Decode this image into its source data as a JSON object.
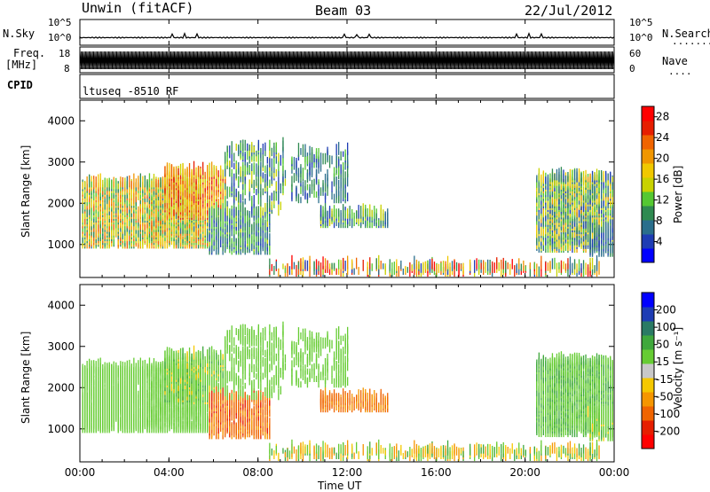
{
  "header": {
    "station": "Unwin (fitACF)",
    "beam": "Beam 03",
    "date": "22/Jul/2012"
  },
  "strip_labels": {
    "nsky": "N.Sky",
    "nsearch": "N.Search",
    "nsearch_dots": ".......",
    "freq": "Freq.",
    "freq_unit": "[MHz]",
    "nave": "Nave",
    "nave_dots": "....",
    "cpid": "CPID",
    "cpid_value": "ltuseq -8510 RF"
  },
  "strip_ticks": {
    "noise_left": [
      "10^5",
      "10^0"
    ],
    "noise_right": [
      "10^5",
      "10^0"
    ],
    "freq_left": [
      "18",
      "8"
    ],
    "nave_right": [
      "60",
      "0"
    ]
  },
  "colors": {
    "power_scale": [
      "#0000ff",
      "#1e3cb4",
      "#2a6e8c",
      "#2f8a50",
      "#55c832",
      "#c8d200",
      "#f0c800",
      "#f09600",
      "#f06400",
      "#e61e00",
      "#ff0000"
    ],
    "velocity_scale": [
      "#0000ff",
      "#1e3cb4",
      "#2a7a64",
      "#3fa83c",
      "#66cc33",
      "#c8c8c8",
      "#f5c800",
      "#f59600",
      "#f06400",
      "#e61e00",
      "#ff0000"
    ]
  },
  "chart_data": [
    {
      "type": "heatmap",
      "name": "power-panel",
      "xlabel": "",
      "ylabel": "Slant Range [km]",
      "y_ticks": [
        "1000",
        "2000",
        "3000",
        "4000"
      ],
      "xlim": [
        0,
        24
      ],
      "ylim": [
        200,
        4500
      ],
      "colorbar": {
        "label": "Power [dB]",
        "ticks": [
          "4",
          "8",
          "12",
          "16",
          "20",
          "24",
          "28"
        ],
        "range": [
          0,
          30
        ]
      }
    },
    {
      "type": "heatmap",
      "name": "velocity-panel",
      "xlabel": "Time UT",
      "ylabel": "Slant Range [km]",
      "x_ticks": [
        "00:00",
        "04:00",
        "08:00",
        "12:00",
        "16:00",
        "20:00",
        "00:00"
      ],
      "y_ticks": [
        "1000",
        "2000",
        "3000",
        "4000"
      ],
      "xlim": [
        0,
        24
      ],
      "ylim": [
        200,
        4500
      ],
      "colorbar": {
        "label": "Velocity [m s⁻¹]",
        "ticks": [
          "200",
          "100",
          "50",
          "15",
          "-15",
          "-50",
          "-100",
          "-200"
        ]
      }
    }
  ]
}
